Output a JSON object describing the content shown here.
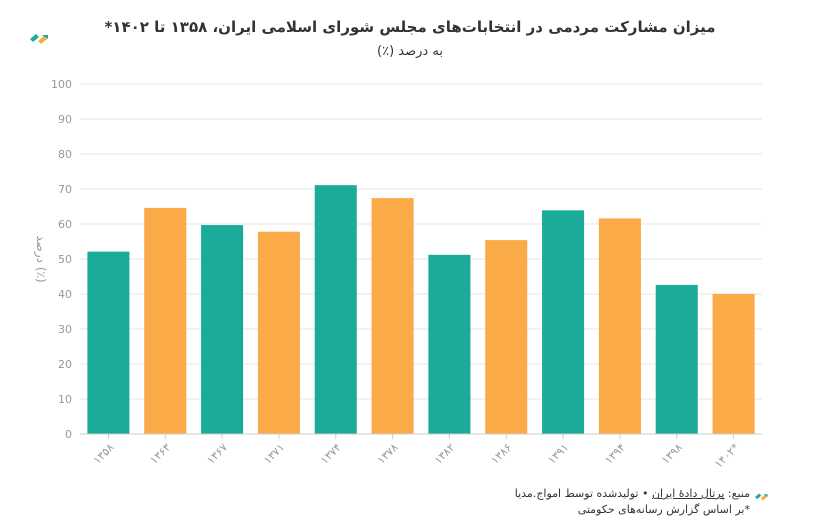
{
  "header": {
    "title": "میزان مشارکت مردمی در انتخابات‌های مجلس شورای اسلامی ایران، ۱۳۵۸ تا ۱۴۰۲*",
    "subtitle": "به درصد (٪)"
  },
  "footer": {
    "source_prefix": "منبع: ",
    "source_link": "پرتال دادهٔ ایران",
    "source_suffix": " • تولیدشده توسط امواج.مدیا",
    "note": "*بر اساس گزارش رسانه‌های حکومتی"
  },
  "colors": {
    "teal": "#1aac99",
    "orange": "#fbaa48",
    "grid": "#e6e6e6",
    "axis_text": "#999999"
  },
  "icons": {
    "top": "amwaj-logo-icon",
    "bottom": "amwaj-logo-icon"
  },
  "chart_data": {
    "type": "bar",
    "ylabel": "درصد (٪)",
    "ylim": [
      0,
      100
    ],
    "yticks": [
      0,
      10,
      20,
      30,
      40,
      50,
      60,
      70,
      80,
      90,
      100
    ],
    "grid": true,
    "categories": [
      "۱۳۵۸",
      "۱۳۶۳",
      "۱۳۶۷",
      "۱۳۷۱",
      "۱۳۷۴",
      "۱۳۷۸",
      "۱۳۸۲",
      "۱۳۸۶",
      "۱۳۹۱",
      "۱۳۹۴",
      "۱۳۹۸",
      "۱۴۰۲*"
    ],
    "values": [
      52.1,
      64.6,
      59.7,
      57.8,
      71.1,
      67.4,
      51.2,
      55.4,
      63.9,
      61.6,
      42.6,
      40.0
    ],
    "bar_colors": [
      "#1aac99",
      "#fbaa48",
      "#1aac99",
      "#fbaa48",
      "#1aac99",
      "#fbaa48",
      "#1aac99",
      "#fbaa48",
      "#1aac99",
      "#fbaa48",
      "#1aac99",
      "#fbaa48"
    ]
  }
}
